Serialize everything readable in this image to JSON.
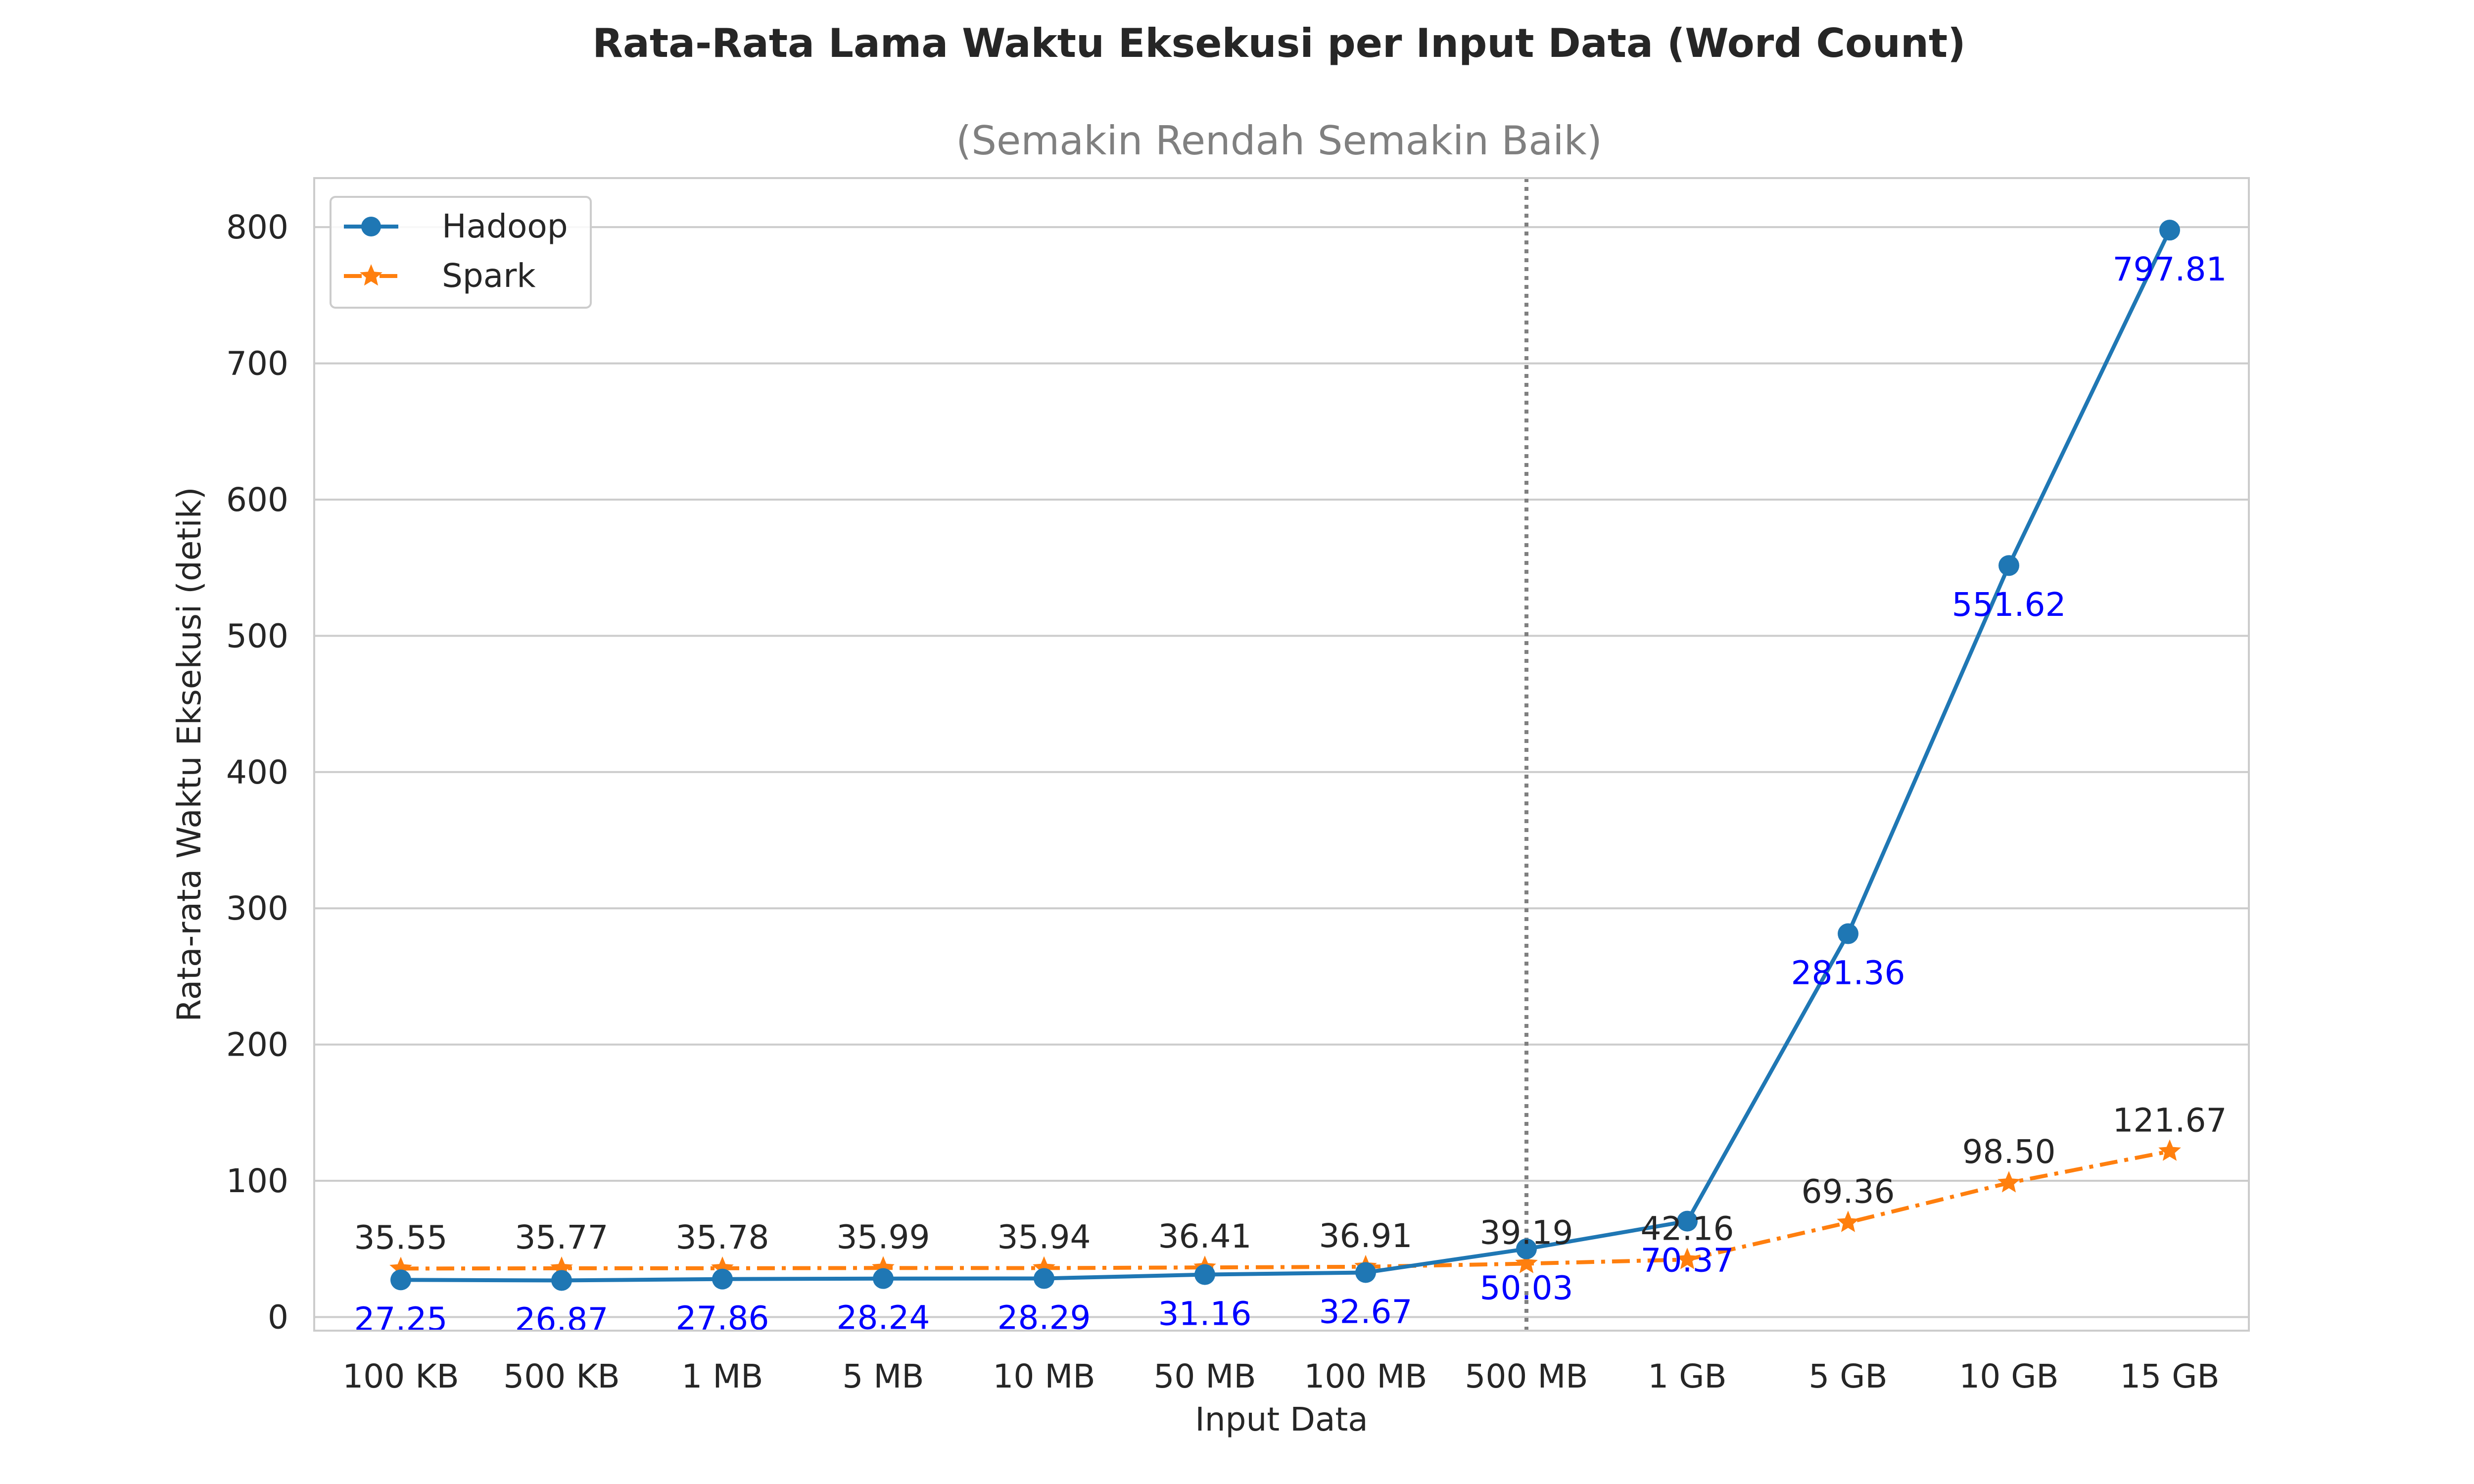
{
  "chart_data": {
    "type": "line",
    "title": "Rata-Rata Lama Waktu Eksekusi per Input Data (Word Count)",
    "subtitle": "(Semakin Rendah Semakin Baik)",
    "xlabel": "Input Data",
    "ylabel": "Rata-rata Waktu Eksekusi (detik)",
    "categories": [
      "100 KB",
      "500 KB",
      "1 MB",
      "5 MB",
      "10 MB",
      "50 MB",
      "100 MB",
      "500 MB",
      "1 GB",
      "5 GB",
      "10 GB",
      "15 GB"
    ],
    "ylim": [
      -10,
      836
    ],
    "yticks": [
      0,
      100,
      200,
      300,
      400,
      500,
      600,
      700,
      800
    ],
    "grid": true,
    "legend_position": "top-left",
    "reference_line_category": "500 MB",
    "series": [
      {
        "name": "Hadoop",
        "color": "#1f77b4",
        "marker": "circle",
        "line_style": "solid",
        "label_color": "#0000ff",
        "values": [
          27.25,
          26.87,
          27.86,
          28.24,
          28.29,
          31.16,
          32.67,
          50.03,
          70.37,
          281.36,
          551.62,
          797.81
        ],
        "labels": [
          "27.25",
          "26.87",
          "27.86",
          "28.24",
          "28.29",
          "31.16",
          "32.67",
          "50.03",
          "70.37",
          "281.36",
          "551.62",
          "797.81"
        ]
      },
      {
        "name": "Spark",
        "color": "#ff7f0e",
        "marker": "star",
        "line_style": "dash-dot",
        "label_color": "#262626",
        "values": [
          35.55,
          35.77,
          35.78,
          35.99,
          35.94,
          36.41,
          36.91,
          39.19,
          42.16,
          69.36,
          98.5,
          121.67
        ],
        "labels": [
          "35.55",
          "35.77",
          "35.78",
          "35.99",
          "35.94",
          "36.41",
          "36.91",
          "39.19",
          "42.16",
          "69.36",
          "98.50",
          "121.67"
        ]
      }
    ]
  }
}
